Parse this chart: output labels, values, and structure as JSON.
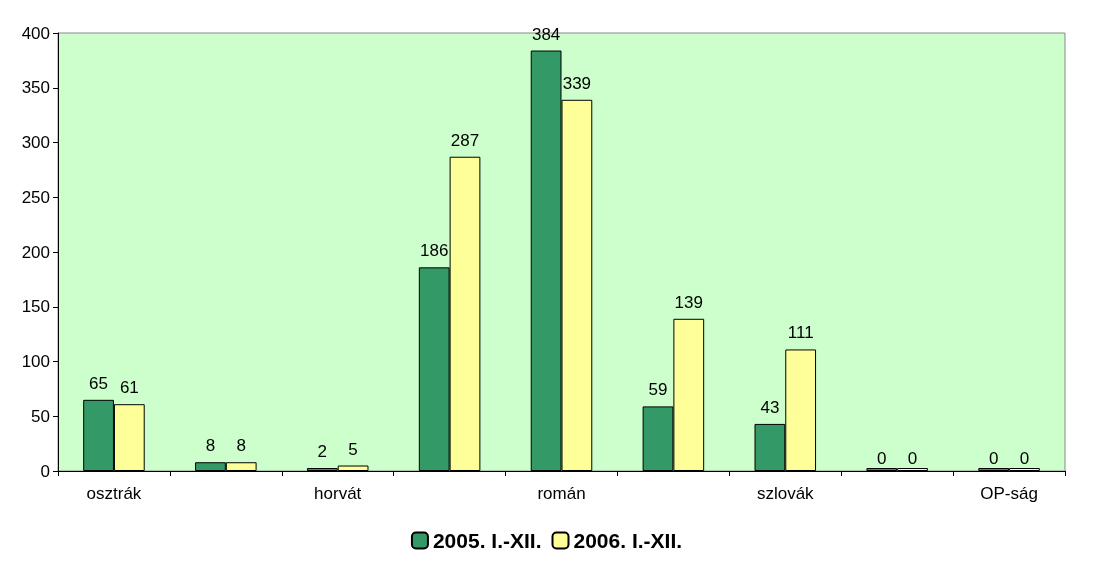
{
  "chart_data": {
    "type": "bar",
    "categories": [
      "osztrák",
      null,
      "horvát",
      null,
      "román",
      null,
      "szlovák",
      null,
      "OP-ság"
    ],
    "series": [
      {
        "name": "2005. I.-XII.",
        "color": "#339966",
        "values": [
          65,
          8,
          2,
          186,
          384,
          59,
          43,
          0,
          0
        ]
      },
      {
        "name": "2006. I.-XII.",
        "color": "#ffff99",
        "values": [
          61,
          8,
          5,
          287,
          339,
          139,
          111,
          0,
          0
        ]
      }
    ],
    "ylim": [
      0,
      400
    ],
    "yticks": [
      0,
      50,
      100,
      150,
      200,
      250,
      300,
      350,
      400
    ],
    "grid": false,
    "legend": "bottom",
    "data_labels": true
  }
}
